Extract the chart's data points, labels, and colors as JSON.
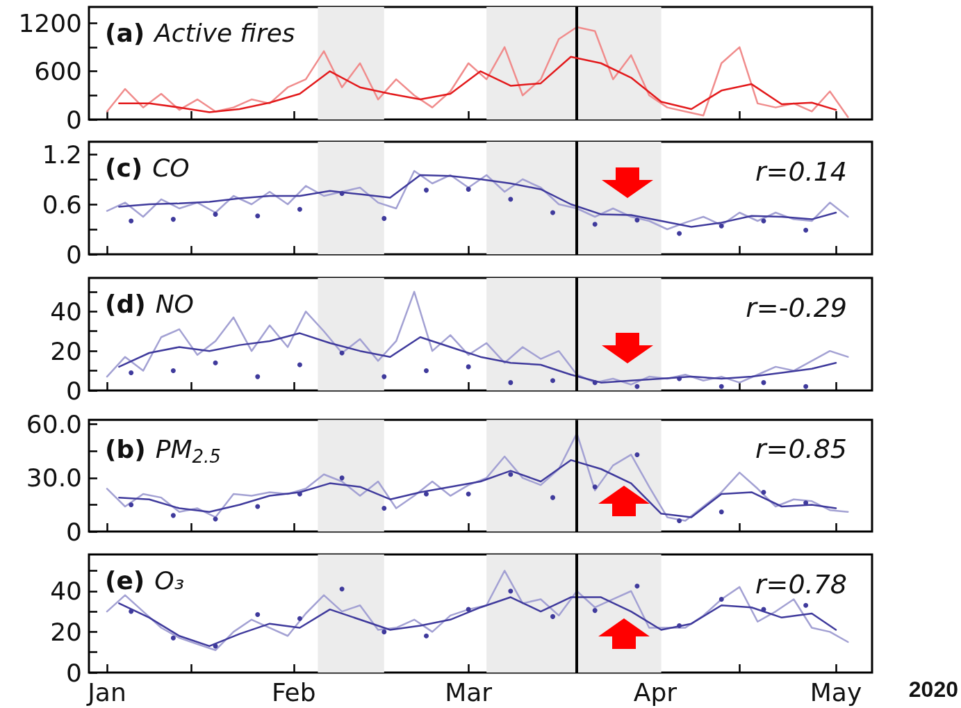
{
  "chart_data": [
    {
      "type": "line",
      "title": "(a) Active fires",
      "marker": "none",
      "x": [
        "2020-01-01",
        "2020-01-04",
        "2020-01-07",
        "2020-01-10",
        "2020-01-13",
        "2020-01-16",
        "2020-01-19",
        "2020-01-22",
        "2020-01-25",
        "2020-01-28",
        "2020-01-31",
        "2020-02-03",
        "2020-02-06",
        "2020-02-09",
        "2020-02-12",
        "2020-02-15",
        "2020-02-18",
        "2020-02-21",
        "2020-02-24",
        "2020-02-27",
        "2020-03-01",
        "2020-03-04",
        "2020-03-07",
        "2020-03-10",
        "2020-03-13",
        "2020-03-16",
        "2020-03-19",
        "2020-03-22",
        "2020-03-25",
        "2020-03-28",
        "2020-03-31",
        "2020-04-03",
        "2020-04-06",
        "2020-04-09",
        "2020-04-12",
        "2020-04-15",
        "2020-04-18",
        "2020-04-21",
        "2020-04-24",
        "2020-04-27",
        "2020-04-30",
        "2020-05-03"
      ],
      "series": [
        {
          "color": "#f08c8c",
          "values": [
            100,
            380,
            150,
            320,
            120,
            250,
            100,
            150,
            250,
            200,
            400,
            500,
            850,
            400,
            700,
            250,
            500,
            300,
            150,
            350,
            700,
            500,
            900,
            300,
            500,
            1000,
            1150,
            1100,
            500,
            800,
            300,
            150,
            100,
            50,
            700,
            900,
            200,
            150,
            200,
            100,
            350,
            30
          ]
        },
        {
          "type": "line",
          "color": "#e31a1c",
          "x": [
            "2020-01-03",
            "2020-01-08",
            "2020-01-13",
            "2020-01-18",
            "2020-01-23",
            "2020-01-28",
            "2020-02-02",
            "2020-02-07",
            "2020-02-12",
            "2020-02-17",
            "2020-02-22",
            "2020-02-27",
            "2020-03-03",
            "2020-03-08",
            "2020-03-13",
            "2020-03-18",
            "2020-03-23",
            "2020-03-28",
            "2020-04-02",
            "2020-04-07",
            "2020-04-12",
            "2020-04-17",
            "2020-04-22",
            "2020-04-27",
            "2020-05-01"
          ],
          "values": [
            200,
            200,
            150,
            90,
            130,
            210,
            320,
            600,
            400,
            320,
            250,
            320,
            600,
            420,
            450,
            780,
            700,
            520,
            220,
            130,
            360,
            440,
            190,
            210,
            120
          ]
        }
      ],
      "xlim": [
        "2019-12-29",
        "2020-05-07"
      ],
      "ylim": [
        0,
        1400
      ],
      "xticks": [
        {
          "value": "2020-01-01",
          "label": null
        },
        {
          "value": "2020-01-15",
          "label": null
        },
        {
          "value": "2020-02-01",
          "label": null
        },
        {
          "value": "2020-02-15",
          "label": null
        },
        {
          "value": "2020-03-01",
          "label": null
        },
        {
          "value": "2020-03-15",
          "label": null
        },
        {
          "value": "2020-04-01",
          "label": null
        },
        {
          "value": "2020-04-15",
          "label": null
        },
        {
          "value": "2020-05-01",
          "label": null
        }
      ],
      "yticks": [
        0,
        {
          "value": 300,
          "label": null
        },
        600,
        {
          "value": 900,
          "label": null
        },
        1200
      ],
      "tick_labels": "y",
      "bands": [
        {
          "axis": "x",
          "from": "2020-02-05",
          "to": "2020-02-16",
          "color": "#ececec"
        },
        {
          "axis": "x",
          "from": "2020-03-04",
          "to": "2020-04-02",
          "color": "#ececec"
        }
      ],
      "ref_lines": [
        {
          "axis": "x",
          "value": "2020-03-19",
          "color": "#000000"
        }
      ]
    },
    {
      "type": "line",
      "title": "(c) CO",
      "marker": "none",
      "annotations": [
        "r=0.14"
      ],
      "x": [
        "2020-01-01",
        "2020-01-04",
        "2020-01-07",
        "2020-01-10",
        "2020-01-13",
        "2020-01-16",
        "2020-01-19",
        "2020-01-22",
        "2020-01-25",
        "2020-01-28",
        "2020-01-31",
        "2020-02-03",
        "2020-02-06",
        "2020-02-09",
        "2020-02-12",
        "2020-02-15",
        "2020-02-18",
        "2020-02-21",
        "2020-02-24",
        "2020-02-27",
        "2020-03-01",
        "2020-03-04",
        "2020-03-07",
        "2020-03-10",
        "2020-03-13",
        "2020-03-16",
        "2020-03-19",
        "2020-03-22",
        "2020-03-25",
        "2020-03-28",
        "2020-03-31",
        "2020-04-03",
        "2020-04-06",
        "2020-04-09",
        "2020-04-12",
        "2020-04-15",
        "2020-04-18",
        "2020-04-21",
        "2020-04-24",
        "2020-04-27",
        "2020-04-30",
        "2020-05-03"
      ],
      "series": [
        {
          "color": "#a3a1d3",
          "values": [
            0.52,
            0.62,
            0.45,
            0.66,
            0.55,
            0.62,
            0.5,
            0.7,
            0.6,
            0.75,
            0.6,
            0.82,
            0.7,
            0.75,
            0.8,
            0.62,
            0.55,
            1.0,
            0.85,
            0.95,
            0.8,
            0.95,
            0.75,
            0.9,
            0.8,
            0.6,
            0.55,
            0.45,
            0.55,
            0.45,
            0.4,
            0.3,
            0.38,
            0.45,
            0.35,
            0.5,
            0.4,
            0.5,
            0.42,
            0.4,
            0.62,
            0.45
          ]
        },
        {
          "type": "line",
          "color": "#3f3a9c",
          "x": [
            "2020-01-03",
            "2020-01-08",
            "2020-01-13",
            "2020-01-18",
            "2020-01-23",
            "2020-01-28",
            "2020-02-02",
            "2020-02-07",
            "2020-02-12",
            "2020-02-17",
            "2020-02-22",
            "2020-02-27",
            "2020-03-03",
            "2020-03-08",
            "2020-03-13",
            "2020-03-18",
            "2020-03-23",
            "2020-03-28",
            "2020-04-02",
            "2020-04-07",
            "2020-04-12",
            "2020-04-17",
            "2020-04-22",
            "2020-04-27",
            "2020-05-01"
          ],
          "values": [
            0.57,
            0.6,
            0.61,
            0.63,
            0.67,
            0.7,
            0.7,
            0.76,
            0.72,
            0.68,
            0.95,
            0.94,
            0.9,
            0.85,
            0.78,
            0.6,
            0.48,
            0.47,
            0.4,
            0.33,
            0.38,
            0.46,
            0.45,
            0.42,
            0.5
          ]
        },
        {
          "type": "scatter",
          "marker": "circle",
          "color": "#3f3a9c",
          "x": [
            "2020-01-05",
            "2020-01-12",
            "2020-01-19",
            "2020-01-26",
            "2020-02-02",
            "2020-02-09",
            "2020-02-16",
            "2020-02-23",
            "2020-03-01",
            "2020-03-08",
            "2020-03-15",
            "2020-03-22",
            "2020-03-29",
            "2020-04-05",
            "2020-04-12",
            "2020-04-19",
            "2020-04-26"
          ],
          "values": [
            0.4,
            0.42,
            0.48,
            0.46,
            0.54,
            0.73,
            0.43,
            0.77,
            0.78,
            0.66,
            0.5,
            0.36,
            0.41,
            0.25,
            0.34,
            0.4,
            0.29
          ]
        }
      ],
      "xlim": [
        "2019-12-29",
        "2020-05-07"
      ],
      "ylim": [
        0,
        1.35
      ],
      "xticks": [
        {
          "value": "2020-01-01",
          "label": null
        },
        {
          "value": "2020-01-15",
          "label": null
        },
        {
          "value": "2020-02-01",
          "label": null
        },
        {
          "value": "2020-02-15",
          "label": null
        },
        {
          "value": "2020-03-01",
          "label": null
        },
        {
          "value": "2020-03-15",
          "label": null
        },
        {
          "value": "2020-04-01",
          "label": null
        },
        {
          "value": "2020-04-15",
          "label": null
        },
        {
          "value": "2020-05-01",
          "label": null
        }
      ],
      "yticks": [
        0,
        {
          "value": 0.3,
          "label": null
        },
        0.6,
        {
          "value": 0.9,
          "label": null
        },
        1.2
      ],
      "tick_labels": "y",
      "bands": [
        {
          "axis": "x",
          "from": "2020-02-05",
          "to": "2020-02-16",
          "color": "#ececec"
        },
        {
          "axis": "x",
          "from": "2020-03-04",
          "to": "2020-04-02",
          "color": "#ececec"
        }
      ],
      "ref_lines": [
        {
          "axis": "x",
          "value": "2020-03-19",
          "color": "#000000"
        }
      ]
    },
    {
      "type": "line",
      "title": "(d) NO",
      "marker": "none",
      "annotations": [
        "r=-0.29"
      ],
      "x": [
        "2020-01-01",
        "2020-01-04",
        "2020-01-07",
        "2020-01-10",
        "2020-01-13",
        "2020-01-16",
        "2020-01-19",
        "2020-01-22",
        "2020-01-25",
        "2020-01-28",
        "2020-01-31",
        "2020-02-03",
        "2020-02-06",
        "2020-02-09",
        "2020-02-12",
        "2020-02-15",
        "2020-02-18",
        "2020-02-21",
        "2020-02-24",
        "2020-02-27",
        "2020-03-01",
        "2020-03-04",
        "2020-03-07",
        "2020-03-10",
        "2020-03-13",
        "2020-03-16",
        "2020-03-19",
        "2020-03-22",
        "2020-03-25",
        "2020-03-28",
        "2020-03-31",
        "2020-04-03",
        "2020-04-06",
        "2020-04-09",
        "2020-04-12",
        "2020-04-15",
        "2020-04-18",
        "2020-04-21",
        "2020-04-24",
        "2020-04-27",
        "2020-04-30",
        "2020-05-03"
      ],
      "series": [
        {
          "color": "#a3a1d3",
          "values": [
            7,
            17,
            10,
            27,
            31,
            18,
            25,
            37,
            20,
            33,
            22,
            40,
            30,
            19,
            26,
            15,
            25,
            50,
            20,
            28,
            18,
            24,
            14,
            22,
            16,
            20,
            8,
            4,
            6,
            3,
            7,
            6,
            8,
            5,
            7,
            4,
            8,
            12,
            10,
            15,
            20,
            17
          ]
        },
        {
          "type": "line",
          "color": "#3f3a9c",
          "x": [
            "2020-01-03",
            "2020-01-08",
            "2020-01-13",
            "2020-01-18",
            "2020-01-23",
            "2020-01-28",
            "2020-02-02",
            "2020-02-07",
            "2020-02-12",
            "2020-02-17",
            "2020-02-22",
            "2020-02-27",
            "2020-03-03",
            "2020-03-08",
            "2020-03-13",
            "2020-03-18",
            "2020-03-23",
            "2020-03-28",
            "2020-04-02",
            "2020-04-07",
            "2020-04-12",
            "2020-04-17",
            "2020-04-22",
            "2020-04-27",
            "2020-05-01"
          ],
          "values": [
            12,
            19,
            22,
            20,
            23,
            25,
            29,
            24,
            20,
            17,
            27,
            22,
            17,
            14,
            13,
            8,
            4,
            5,
            6,
            7,
            6,
            7,
            9,
            11,
            14
          ]
        },
        {
          "type": "scatter",
          "marker": "circle",
          "color": "#3f3a9c",
          "x": [
            "2020-01-05",
            "2020-01-12",
            "2020-01-19",
            "2020-01-26",
            "2020-02-02",
            "2020-02-09",
            "2020-02-16",
            "2020-02-23",
            "2020-03-01",
            "2020-03-08",
            "2020-03-15",
            "2020-03-22",
            "2020-03-29",
            "2020-04-05",
            "2020-04-12",
            "2020-04-19",
            "2020-04-26"
          ],
          "values": [
            9,
            10,
            14,
            7,
            13,
            19,
            7,
            10,
            12,
            4,
            5,
            4,
            2,
            6,
            2,
            4,
            2
          ]
        }
      ],
      "xlim": [
        "2019-12-29",
        "2020-05-07"
      ],
      "ylim": [
        0,
        57
      ],
      "xticks": [
        {
          "value": "2020-01-01",
          "label": null
        },
        {
          "value": "2020-01-15",
          "label": null
        },
        {
          "value": "2020-02-01",
          "label": null
        },
        {
          "value": "2020-02-15",
          "label": null
        },
        {
          "value": "2020-03-01",
          "label": null
        },
        {
          "value": "2020-03-15",
          "label": null
        },
        {
          "value": "2020-04-01",
          "label": null
        },
        {
          "value": "2020-04-15",
          "label": null
        },
        {
          "value": "2020-05-01",
          "label": null
        }
      ],
      "yticks": [
        0,
        {
          "value": 10,
          "label": null
        },
        20,
        {
          "value": 30,
          "label": null
        },
        40,
        {
          "value": 50,
          "label": null
        }
      ],
      "tick_labels": "y",
      "bands": [
        {
          "axis": "x",
          "from": "2020-02-05",
          "to": "2020-02-16",
          "color": "#ececec"
        },
        {
          "axis": "x",
          "from": "2020-03-04",
          "to": "2020-04-02",
          "color": "#ececec"
        }
      ],
      "ref_lines": [
        {
          "axis": "x",
          "value": "2020-03-19",
          "color": "#000000"
        }
      ]
    },
    {
      "type": "line",
      "title": "(b) PM$_{2.5}$",
      "marker": "none",
      "annotations": [
        "r=0.85"
      ],
      "x": [
        "2020-01-01",
        "2020-01-04",
        "2020-01-07",
        "2020-01-10",
        "2020-01-13",
        "2020-01-16",
        "2020-01-19",
        "2020-01-22",
        "2020-01-25",
        "2020-01-28",
        "2020-01-31",
        "2020-02-03",
        "2020-02-06",
        "2020-02-09",
        "2020-02-12",
        "2020-02-15",
        "2020-02-18",
        "2020-02-21",
        "2020-02-24",
        "2020-02-27",
        "2020-03-01",
        "2020-03-04",
        "2020-03-07",
        "2020-03-10",
        "2020-03-13",
        "2020-03-16",
        "2020-03-19",
        "2020-03-22",
        "2020-03-25",
        "2020-03-28",
        "2020-03-31",
        "2020-04-03",
        "2020-04-06",
        "2020-04-09",
        "2020-04-12",
        "2020-04-15",
        "2020-04-18",
        "2020-04-21",
        "2020-04-24",
        "2020-04-27",
        "2020-04-30",
        "2020-05-03"
      ],
      "series": [
        {
          "color": "#a3a1d3",
          "values": [
            24,
            14,
            21,
            19,
            11,
            13,
            8,
            21,
            20,
            22,
            21,
            24,
            32,
            28,
            20,
            28,
            13,
            20,
            28,
            20,
            26,
            30,
            42,
            30,
            26,
            35,
            55,
            23,
            37,
            43,
            25,
            8,
            6,
            14,
            22,
            33,
            24,
            14,
            18,
            17,
            12,
            11
          ]
        },
        {
          "type": "line",
          "color": "#3f3a9c",
          "x": [
            "2020-01-03",
            "2020-01-08",
            "2020-01-13",
            "2020-01-18",
            "2020-01-23",
            "2020-01-28",
            "2020-02-02",
            "2020-02-07",
            "2020-02-12",
            "2020-02-17",
            "2020-02-22",
            "2020-02-27",
            "2020-03-03",
            "2020-03-08",
            "2020-03-13",
            "2020-03-18",
            "2020-03-23",
            "2020-03-28",
            "2020-04-02",
            "2020-04-07",
            "2020-04-12",
            "2020-04-17",
            "2020-04-22",
            "2020-04-27",
            "2020-05-01"
          ],
          "values": [
            19,
            18,
            13,
            11,
            15,
            20,
            22,
            27,
            25,
            18,
            22,
            25,
            28,
            34,
            28,
            40,
            35,
            27,
            10,
            8,
            21,
            22,
            14,
            15,
            13
          ]
        },
        {
          "type": "scatter",
          "marker": "circle",
          "color": "#3f3a9c",
          "x": [
            "2020-01-05",
            "2020-01-12",
            "2020-01-19",
            "2020-01-26",
            "2020-02-02",
            "2020-02-09",
            "2020-02-16",
            "2020-02-23",
            "2020-03-01",
            "2020-03-08",
            "2020-03-15",
            "2020-03-22",
            "2020-03-29",
            "2020-04-05",
            "2020-04-12",
            "2020-04-19",
            "2020-04-26"
          ],
          "values": [
            15,
            9,
            7,
            14,
            21,
            30,
            13,
            21,
            21,
            32,
            19,
            25,
            43,
            6,
            11,
            22,
            16
          ]
        }
      ],
      "xlim": [
        "2019-12-29",
        "2020-05-07"
      ],
      "ylim": [
        0,
        62.5
      ],
      "xticks": [
        {
          "value": "2020-01-01",
          "label": null
        },
        {
          "value": "2020-01-15",
          "label": null
        },
        {
          "value": "2020-02-01",
          "label": null
        },
        {
          "value": "2020-02-15",
          "label": null
        },
        {
          "value": "2020-03-01",
          "label": null
        },
        {
          "value": "2020-03-15",
          "label": null
        },
        {
          "value": "2020-04-01",
          "label": null
        },
        {
          "value": "2020-04-15",
          "label": null
        },
        {
          "value": "2020-05-01",
          "label": null
        }
      ],
      "yticks": [
        0,
        {
          "value": 15,
          "label": null
        },
        {
          "value": 30,
          "label": "30.0"
        },
        {
          "value": 45,
          "label": null
        },
        {
          "value": 60,
          "label": "60.0"
        }
      ],
      "tick_labels": "y",
      "bands": [
        {
          "axis": "x",
          "from": "2020-02-05",
          "to": "2020-02-16",
          "color": "#ececec"
        },
        {
          "axis": "x",
          "from": "2020-03-04",
          "to": "2020-04-02",
          "color": "#ececec"
        }
      ],
      "ref_lines": [
        {
          "axis": "x",
          "value": "2020-03-19",
          "color": "#000000"
        }
      ]
    },
    {
      "type": "line",
      "title": "(e) O₃",
      "marker": "none",
      "annotations": [
        "r=0.78",
        "2020"
      ],
      "x": [
        "2020-01-01",
        "2020-01-04",
        "2020-01-07",
        "2020-01-10",
        "2020-01-13",
        "2020-01-16",
        "2020-01-19",
        "2020-01-22",
        "2020-01-25",
        "2020-01-28",
        "2020-01-31",
        "2020-02-03",
        "2020-02-06",
        "2020-02-09",
        "2020-02-12",
        "2020-02-15",
        "2020-02-18",
        "2020-02-21",
        "2020-02-24",
        "2020-02-27",
        "2020-03-01",
        "2020-03-04",
        "2020-03-07",
        "2020-03-10",
        "2020-03-13",
        "2020-03-16",
        "2020-03-19",
        "2020-03-22",
        "2020-03-25",
        "2020-03-28",
        "2020-03-31",
        "2020-04-03",
        "2020-04-06",
        "2020-04-09",
        "2020-04-12",
        "2020-04-15",
        "2020-04-18",
        "2020-04-21",
        "2020-04-24",
        "2020-04-27",
        "2020-04-30",
        "2020-05-03"
      ],
      "series": [
        {
          "color": "#a3a1d3",
          "values": [
            30,
            38,
            30,
            22,
            17,
            14,
            11,
            20,
            26,
            22,
            18,
            29,
            38,
            30,
            33,
            21,
            22,
            26,
            20,
            28,
            31,
            33,
            50,
            34,
            36,
            28,
            40,
            32,
            36,
            40,
            22,
            22,
            22,
            28,
            36,
            42,
            25,
            30,
            36,
            22,
            20,
            15
          ]
        },
        {
          "type": "line",
          "color": "#3f3a9c",
          "x": [
            "2020-01-03",
            "2020-01-08",
            "2020-01-13",
            "2020-01-18",
            "2020-01-23",
            "2020-01-28",
            "2020-02-02",
            "2020-02-07",
            "2020-02-12",
            "2020-02-17",
            "2020-02-22",
            "2020-02-27",
            "2020-03-03",
            "2020-03-08",
            "2020-03-13",
            "2020-03-18",
            "2020-03-23",
            "2020-03-28",
            "2020-04-02",
            "2020-04-07",
            "2020-04-12",
            "2020-04-17",
            "2020-04-22",
            "2020-04-27",
            "2020-05-01"
          ],
          "values": [
            34,
            27,
            18,
            13,
            19,
            24,
            22,
            31,
            26,
            21,
            23,
            26,
            32,
            37,
            30,
            37,
            37,
            30,
            21,
            24,
            33,
            32,
            27,
            29,
            21
          ]
        },
        {
          "type": "scatter",
          "marker": "circle",
          "color": "#3f3a9c",
          "x": [
            "2020-01-05",
            "2020-01-12",
            "2020-01-19",
            "2020-01-26",
            "2020-02-02",
            "2020-02-09",
            "2020-02-16",
            "2020-02-23",
            "2020-03-01",
            "2020-03-08",
            "2020-03-15",
            "2020-03-22",
            "2020-03-29",
            "2020-04-05",
            "2020-04-12",
            "2020-04-19",
            "2020-04-26"
          ],
          "values": [
            30,
            17,
            13,
            28.5,
            26.5,
            41,
            20,
            18,
            31,
            40,
            27.5,
            30.5,
            42.5,
            23,
            36,
            31,
            33
          ]
        }
      ],
      "xlim": [
        "2019-12-29",
        "2020-05-07"
      ],
      "ylim": [
        0,
        58
      ],
      "xticks": [
        {
          "value": "2020-01-01",
          "label": "Jan"
        },
        {
          "value": "2020-01-15",
          "label": null
        },
        {
          "value": "2020-02-01",
          "label": "Feb"
        },
        {
          "value": "2020-02-15",
          "label": null
        },
        {
          "value": "2020-03-01",
          "label": "Mar"
        },
        {
          "value": "2020-03-15",
          "label": null
        },
        {
          "value": "2020-04-01",
          "label": "Apr"
        },
        {
          "value": "2020-04-15",
          "label": null
        },
        {
          "value": "2020-05-01",
          "label": "May"
        }
      ],
      "yticks": [
        0,
        {
          "value": 10,
          "label": null
        },
        20,
        {
          "value": 30,
          "label": null
        },
        40,
        {
          "value": 50,
          "label": null
        }
      ],
      "bands": [
        {
          "axis": "x",
          "from": "2020-02-05",
          "to": "2020-02-16",
          "color": "#ececec"
        },
        {
          "axis": "x",
          "from": "2020-03-04",
          "to": "2020-04-02",
          "color": "#ececec"
        }
      ],
      "ref_lines": [
        {
          "axis": "x",
          "value": "2020-03-19",
          "color": "#000000"
        }
      ]
    }
  ]
}
